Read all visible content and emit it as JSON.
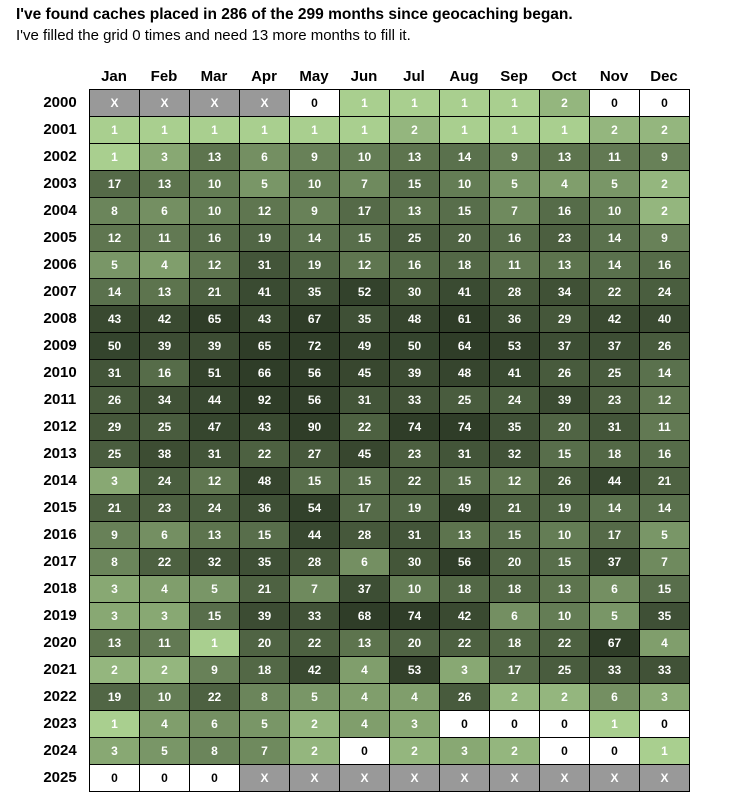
{
  "title": "I've found caches placed in 286 of the 299 months since geocaching began.",
  "subtitle": "I've filled the grid 0 times and need 13 more months to fill it.",
  "chart_data": {
    "type": "heatmap",
    "months": [
      "Jan",
      "Feb",
      "Mar",
      "Apr",
      "May",
      "Jun",
      "Jul",
      "Aug",
      "Sep",
      "Oct",
      "Nov",
      "Dec"
    ],
    "years": [
      "2000",
      "2001",
      "2002",
      "2003",
      "2004",
      "2005",
      "2006",
      "2007",
      "2008",
      "2009",
      "2010",
      "2011",
      "2012",
      "2013",
      "2014",
      "2015",
      "2016",
      "2017",
      "2018",
      "2019",
      "2020",
      "2021",
      "2022",
      "2023",
      "2024",
      "2025"
    ],
    "na_label": "X",
    "values": [
      [
        null,
        null,
        null,
        null,
        0,
        1,
        1,
        1,
        1,
        2,
        0,
        0
      ],
      [
        1,
        1,
        1,
        1,
        1,
        1,
        2,
        1,
        1,
        1,
        2,
        2
      ],
      [
        1,
        3,
        13,
        6,
        9,
        10,
        13,
        14,
        9,
        13,
        11,
        9
      ],
      [
        17,
        13,
        10,
        5,
        10,
        7,
        15,
        10,
        5,
        4,
        5,
        2
      ],
      [
        8,
        6,
        10,
        12,
        9,
        17,
        13,
        15,
        7,
        16,
        10,
        2
      ],
      [
        12,
        11,
        16,
        19,
        14,
        15,
        25,
        20,
        16,
        23,
        14,
        9
      ],
      [
        5,
        4,
        12,
        31,
        19,
        12,
        16,
        18,
        11,
        13,
        14,
        16
      ],
      [
        14,
        13,
        21,
        41,
        35,
        52,
        30,
        41,
        28,
        34,
        22,
        24
      ],
      [
        43,
        42,
        65,
        43,
        67,
        35,
        48,
        61,
        36,
        29,
        42,
        40
      ],
      [
        50,
        39,
        39,
        65,
        72,
        49,
        50,
        64,
        53,
        37,
        37,
        26
      ],
      [
        31,
        16,
        51,
        66,
        56,
        45,
        39,
        48,
        41,
        26,
        25,
        14
      ],
      [
        26,
        34,
        44,
        92,
        56,
        31,
        33,
        25,
        24,
        39,
        23,
        12
      ],
      [
        29,
        25,
        47,
        43,
        90,
        22,
        74,
        74,
        35,
        20,
        31,
        11
      ],
      [
        25,
        38,
        31,
        22,
        27,
        45,
        23,
        31,
        32,
        15,
        18,
        16
      ],
      [
        3,
        24,
        12,
        48,
        15,
        15,
        22,
        15,
        12,
        26,
        44,
        21
      ],
      [
        21,
        23,
        24,
        36,
        54,
        17,
        19,
        49,
        21,
        19,
        14,
        14
      ],
      [
        9,
        6,
        13,
        15,
        44,
        28,
        31,
        13,
        15,
        10,
        17,
        5
      ],
      [
        8,
        22,
        32,
        35,
        28,
        6,
        30,
        56,
        20,
        15,
        37,
        7
      ],
      [
        3,
        4,
        5,
        21,
        7,
        37,
        10,
        18,
        18,
        13,
        6,
        15
      ],
      [
        3,
        3,
        15,
        39,
        33,
        68,
        74,
        42,
        6,
        10,
        5,
        35
      ],
      [
        13,
        11,
        1,
        20,
        22,
        13,
        20,
        22,
        18,
        22,
        67,
        4
      ],
      [
        2,
        2,
        9,
        18,
        42,
        4,
        53,
        3,
        17,
        25,
        33,
        33
      ],
      [
        19,
        10,
        22,
        8,
        5,
        4,
        4,
        26,
        2,
        2,
        6,
        3
      ],
      [
        1,
        4,
        6,
        5,
        2,
        4,
        3,
        0,
        0,
        0,
        1,
        0
      ],
      [
        3,
        5,
        8,
        7,
        2,
        0,
        2,
        3,
        2,
        0,
        0,
        1
      ],
      [
        0,
        0,
        0,
        null,
        null,
        null,
        null,
        null,
        null,
        null,
        null,
        null
      ]
    ],
    "colors": {
      "empty": "#ffffff",
      "not_applicable": "#999999",
      "low": "#a9cf8f",
      "high": "#2f3d28"
    },
    "grid": true
  }
}
